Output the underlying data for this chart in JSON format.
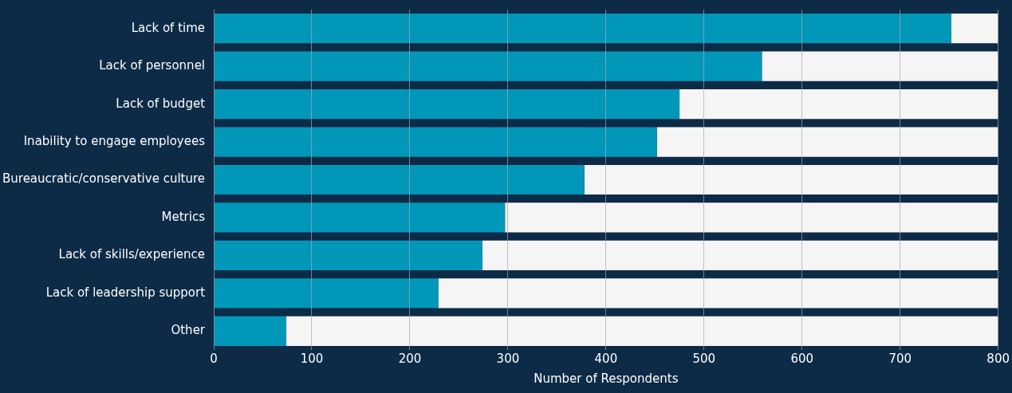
{
  "chart_data": {
    "type": "bar",
    "orientation": "horizontal",
    "stacked": true,
    "xlabel": "Number of Respondents",
    "categories": [
      "Lack of time",
      "Lack of personnel",
      "Lack of budget",
      "Inability to engage employees",
      "Bureaucratic/conservative culture",
      "Metrics",
      "Lack of skills/experience",
      "Lack of leadership support",
      "Other"
    ],
    "series": [
      {
        "color": "#0097b8",
        "values": [
          752,
          559,
          475,
          452,
          378,
          297,
          274,
          229,
          74
        ]
      },
      {
        "color": "#f5f5f5",
        "values": [
          48,
          241,
          325,
          348,
          422,
          503,
          526,
          571,
          726
        ]
      }
    ],
    "xlim": [
      0,
      800
    ],
    "xticks": [
      0,
      100,
      200,
      300,
      400,
      500,
      600,
      700,
      800
    ],
    "grid": "x",
    "legend": false
  }
}
